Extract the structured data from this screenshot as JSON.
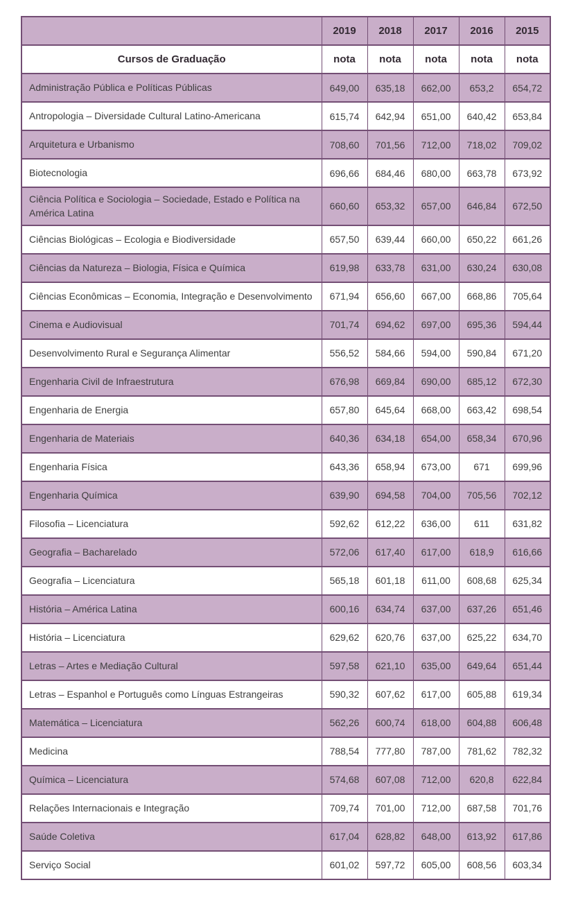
{
  "table": {
    "first_column_header": "Cursos de Graduação",
    "year_headers": [
      "2019",
      "2018",
      "2017",
      "2016",
      "2015"
    ],
    "nota_label": "nota",
    "rows": [
      {
        "course": "Administração Pública e Políticas Públicas",
        "values": [
          "649,00",
          "635,18",
          "662,00",
          "653,2",
          "654,72"
        ]
      },
      {
        "course": "Antropologia – Diversidade Cultural Latino-Americana",
        "values": [
          "615,74",
          "642,94",
          "651,00",
          "640,42",
          "653,84"
        ]
      },
      {
        "course": "Arquitetura e Urbanismo",
        "values": [
          "708,60",
          "701,56",
          "712,00",
          "718,02",
          "709,02"
        ]
      },
      {
        "course": "Biotecnologia",
        "values": [
          "696,66",
          "684,46",
          "680,00",
          "663,78",
          "673,92"
        ]
      },
      {
        "course": "Ciência Política e Sociologia – Sociedade, Estado e Política na América Latina",
        "values": [
          "660,60",
          "653,32",
          "657,00",
          "646,84",
          "672,50"
        ]
      },
      {
        "course": "Ciências Biológicas – Ecologia e Biodiversidade",
        "values": [
          "657,50",
          "639,44",
          "660,00",
          "650,22",
          "661,26"
        ]
      },
      {
        "course": "Ciências da Natureza – Biologia, Física e Química",
        "values": [
          "619,98",
          "633,78",
          "631,00",
          "630,24",
          "630,08"
        ]
      },
      {
        "course": "Ciências Econômicas – Economia, Integração e Desenvolvimento",
        "values": [
          "671,94",
          "656,60",
          "667,00",
          "668,86",
          "705,64"
        ]
      },
      {
        "course": "Cinema e Audiovisual",
        "values": [
          "701,74",
          "694,62",
          "697,00",
          "695,36",
          "594,44"
        ]
      },
      {
        "course": "Desenvolvimento Rural e Segurança Alimentar",
        "values": [
          "556,52",
          "584,66",
          "594,00",
          "590,84",
          "671,20"
        ]
      },
      {
        "course": "Engenharia Civil de Infraestrutura",
        "values": [
          "676,98",
          "669,84",
          "690,00",
          "685,12",
          "672,30"
        ]
      },
      {
        "course": "Engenharia de Energia",
        "values": [
          "657,80",
          "645,64",
          "668,00",
          "663,42",
          "698,54"
        ]
      },
      {
        "course": "Engenharia de Materiais",
        "values": [
          "640,36",
          "634,18",
          "654,00",
          "658,34",
          "670,96"
        ]
      },
      {
        "course": "Engenharia Física",
        "values": [
          "643,36",
          "658,94",
          "673,00",
          "671",
          "699,96"
        ]
      },
      {
        "course": "Engenharia Química",
        "values": [
          "639,90",
          "694,58",
          "704,00",
          "705,56",
          "702,12"
        ]
      },
      {
        "course": "Filosofia – Licenciatura",
        "values": [
          "592,62",
          "612,22",
          "636,00",
          "611",
          "631,82"
        ]
      },
      {
        "course": "Geografia – Bacharelado",
        "values": [
          "572,06",
          "617,40",
          "617,00",
          "618,9",
          "616,66"
        ]
      },
      {
        "course": "Geografia – Licenciatura",
        "values": [
          "565,18",
          "601,18",
          "611,00",
          "608,68",
          "625,34"
        ]
      },
      {
        "course": "História – América Latina",
        "values": [
          "600,16",
          "634,74",
          "637,00",
          "637,26",
          "651,46"
        ]
      },
      {
        "course": "História – Licenciatura",
        "values": [
          "629,62",
          "620,76",
          "637,00",
          "625,22",
          "634,70"
        ]
      },
      {
        "course": "Letras – Artes e Mediação Cultural",
        "values": [
          "597,58",
          "621,10",
          "635,00",
          "649,64",
          "651,44"
        ]
      },
      {
        "course": "Letras – Espanhol e Português como Línguas Estrangeiras",
        "values": [
          "590,32",
          "607,62",
          "617,00",
          "605,88",
          "619,34"
        ]
      },
      {
        "course": "Matemática – Licenciatura",
        "values": [
          "562,26",
          "600,74",
          "618,00",
          "604,88",
          "606,48"
        ]
      },
      {
        "course": "Medicina",
        "values": [
          "788,54",
          "777,80",
          "787,00",
          "781,62",
          "782,32"
        ]
      },
      {
        "course": "Química – Licenciatura",
        "values": [
          "574,68",
          "607,08",
          "712,00",
          "620,8",
          "622,84"
        ]
      },
      {
        "course": "Relações Internacionais e Integração",
        "values": [
          "709,74",
          "701,00",
          "712,00",
          "687,58",
          "701,76"
        ]
      },
      {
        "course": "Saúde Coletiva",
        "values": [
          "617,04",
          "628,82",
          "648,00",
          "613,92",
          "617,86"
        ]
      },
      {
        "course": "Serviço Social",
        "values": [
          "601,02",
          "597,72",
          "605,00",
          "608,56",
          "603,34"
        ]
      }
    ]
  },
  "colors": {
    "row_shade": "#c9aec9",
    "border": "#734e74",
    "text": "#3e3e3e"
  }
}
